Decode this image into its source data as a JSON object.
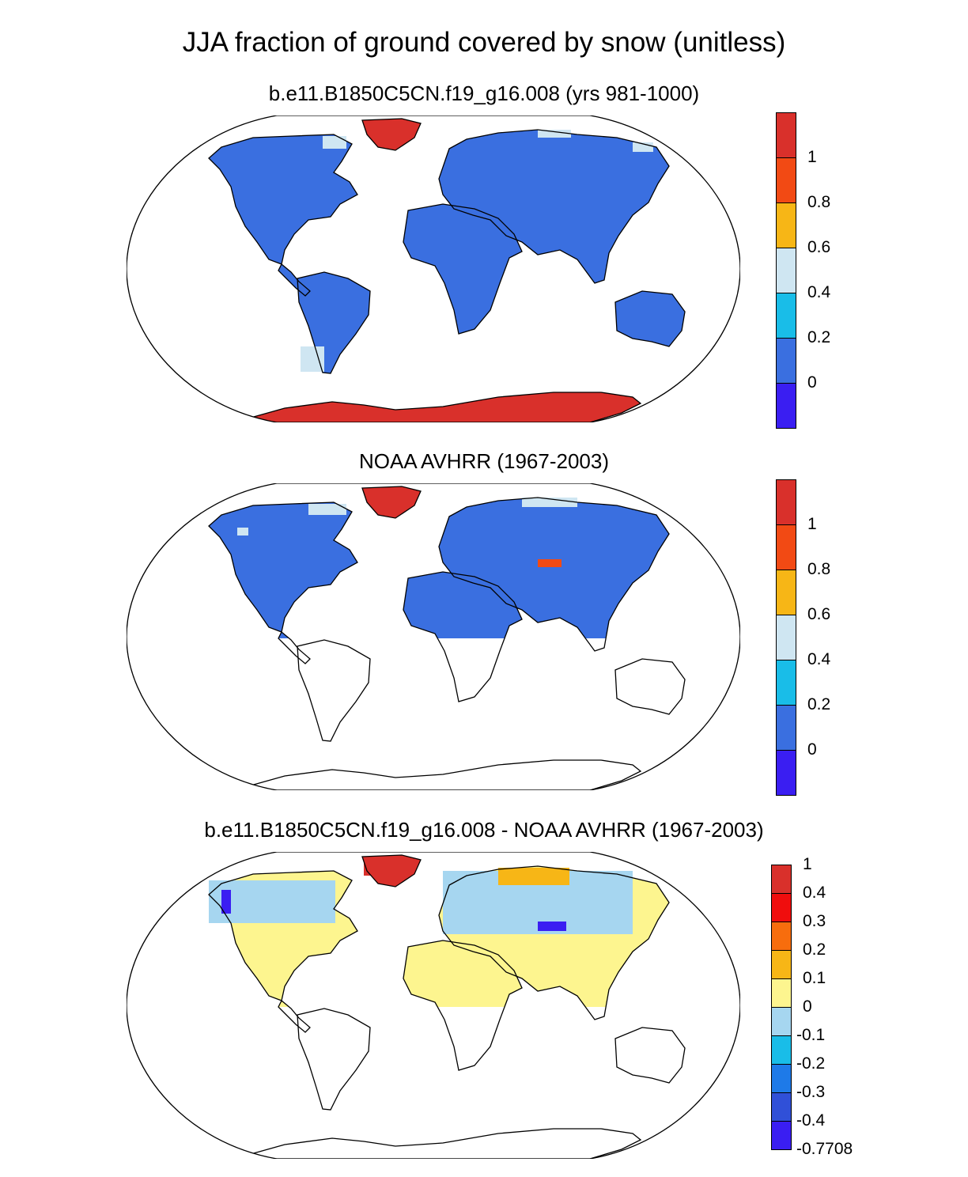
{
  "figure": {
    "title": "JJA fraction of ground covered by snow (unitless)"
  },
  "panels": [
    {
      "title": "b.e11.B1850C5CN.f19_g16.008 (yrs 981-1000)",
      "colorbar": {
        "labels": [
          "1",
          "0.8",
          "0.6",
          "0.4",
          "0.2",
          "0"
        ],
        "colors": [
          "#d9302b",
          "#f24a14",
          "#f7b616",
          "#cfe6f2",
          "#19bde8",
          "#3a6fe0",
          "#3a1ef2"
        ]
      },
      "fill": {
        "land": "#3a6fe0",
        "polar_ice": "#d9302b",
        "highlight": "#f24a14",
        "accent": "#cfe6f2"
      }
    },
    {
      "title": "NOAA AVHRR (1967-2003)",
      "colorbar": {
        "labels": [
          "1",
          "0.8",
          "0.6",
          "0.4",
          "0.2",
          "0"
        ],
        "colors": [
          "#d9302b",
          "#f24a14",
          "#f7b616",
          "#cfe6f2",
          "#19bde8",
          "#3a6fe0",
          "#3a1ef2"
        ]
      },
      "fill": {
        "land": "#3a6fe0",
        "polar_ice": "#d9302b",
        "highlight": "#f24a14",
        "accent": "#cfe6f2"
      }
    },
    {
      "title": "b.e11.B1850C5CN.f19_g16.008 - NOAA AVHRR (1967-2003)",
      "colorbar": {
        "labels": [
          "1",
          "0.4",
          "0.3",
          "0.2",
          "0.1",
          "0",
          "-0.1",
          "-0.2",
          "-0.3",
          "-0.4",
          "-0.7708"
        ],
        "colors": [
          "#d9302b",
          "#f00d0d",
          "#f76d0d",
          "#f7b616",
          "#fdf58f",
          "#a6d6f0",
          "#19bde8",
          "#1e7ae8",
          "#3050d8",
          "#3a1ef2"
        ]
      },
      "fill": {
        "land": "#fdf58f",
        "polar_ice": "#d9302b",
        "highlight": "#a6d6f0",
        "accent": "#3a1ef2"
      }
    }
  ]
}
